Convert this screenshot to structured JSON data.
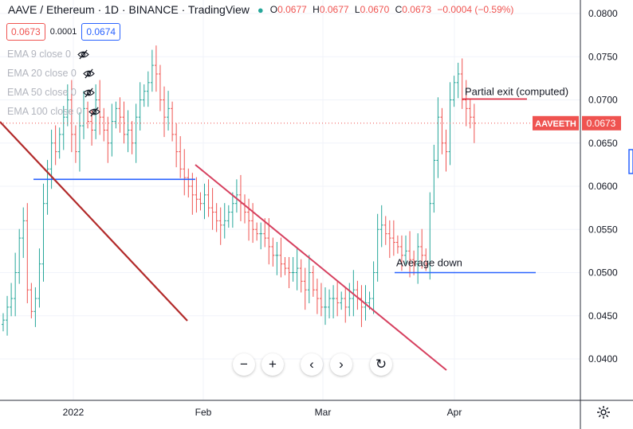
{
  "header": {
    "title": "AAVE / Ethereum · 1D · BINANCE · TradingView",
    "status_dot": "●",
    "ohlc": [
      {
        "key": "O",
        "value": "0.0677"
      },
      {
        "key": "H",
        "value": "0.0677"
      },
      {
        "key": "L",
        "value": "0.0670"
      },
      {
        "key": "C",
        "value": "0.0673"
      }
    ],
    "change": "−0.0004 (−0.59%)"
  },
  "trade": {
    "sell_price": "0.0673",
    "spread": "0.0001",
    "buy_price": "0.0674"
  },
  "indicators": [
    {
      "label": "EMA 9 close 0",
      "icon": "eye-off-icon"
    },
    {
      "label": "EMA 20 close 0",
      "icon": "eye-off-icon"
    },
    {
      "label": "EMA 50 close 0",
      "icon": "eye-off-icon"
    },
    {
      "label": "EMA 100 close 0",
      "icon": "eye-off-icon"
    }
  ],
  "annotations": {
    "partial_exit": "Partial exit (computed)",
    "average_down": "Average down"
  },
  "price_scale": {
    "ticks": [
      "0.0800",
      "0.0750",
      "0.0700",
      "0.0650",
      "0.0600",
      "0.0550",
      "0.0500",
      "0.0450",
      "0.0400"
    ],
    "symbol_label": "AAVEETH",
    "last_price": "0.0673"
  },
  "time_scale": {
    "ticks": [
      "2022",
      "Feb",
      "Mar",
      "Apr"
    ]
  },
  "controls": {
    "zoom_out": "−",
    "zoom_in": "+",
    "scroll_left": "‹",
    "scroll_right": "›",
    "reset": "↻"
  },
  "colors": {
    "up": "#26a69a",
    "down": "#ef5350",
    "hline": "#2962ff",
    "trend_dark": "#b22a2a",
    "trend_pink": "#d6405f",
    "exit_line": "#e0283c"
  },
  "chart_data": {
    "type": "candlestick",
    "symbol": "AAVEETH",
    "timeframe": "1D",
    "exchange": "BINANCE",
    "ylim": [
      0.038,
      0.081
    ],
    "last_close": 0.0673,
    "closes_approx": [
      0.0445,
      0.046,
      0.047,
      0.05,
      0.054,
      0.056,
      0.048,
      0.0455,
      0.047,
      0.051,
      0.058,
      0.062,
      0.065,
      0.064,
      0.066,
      0.068,
      0.07,
      0.066,
      0.064,
      0.067,
      0.069,
      0.0675,
      0.0665,
      0.07,
      0.068,
      0.0665,
      0.065,
      0.0675,
      0.069,
      0.068,
      0.066,
      0.0665,
      0.065,
      0.068,
      0.07,
      0.071,
      0.072,
      0.074,
      0.073,
      0.07,
      0.068,
      0.069,
      0.066,
      0.064,
      0.062,
      0.061,
      0.06,
      0.059,
      0.0585,
      0.058,
      0.059,
      0.0575,
      0.057,
      0.056,
      0.0555,
      0.056,
      0.057,
      0.058,
      0.059,
      0.058,
      0.057,
      0.056,
      0.055,
      0.0545,
      0.0545,
      0.054,
      0.053,
      0.052,
      0.052,
      0.051,
      0.0505,
      0.05,
      0.05,
      0.0505,
      0.049,
      0.048,
      0.05,
      0.048,
      0.047,
      0.046,
      0.046,
      0.047,
      0.047,
      0.0465,
      0.047,
      0.046,
      0.047,
      0.048,
      0.047,
      0.046,
      0.0465,
      0.047,
      0.05,
      0.055,
      0.0555,
      0.0545,
      0.054,
      0.0535,
      0.053,
      0.052,
      0.0525,
      0.0515,
      0.051,
      0.053,
      0.052,
      0.051,
      0.058,
      0.063,
      0.068,
      0.065,
      0.064,
      0.07,
      0.072,
      0.073,
      0.07,
      0.069,
      0.068,
      0.0673
    ],
    "horizontal_lines": [
      {
        "price": 0.0608,
        "label": ""
      },
      {
        "price": 0.05,
        "label": "Average down"
      },
      {
        "price": 0.0701,
        "label": "Partial exit (computed)"
      }
    ],
    "x_ticks": [
      "2022",
      "Feb",
      "Mar",
      "Apr"
    ],
    "y_ticks": [
      0.08,
      0.075,
      0.07,
      0.065,
      0.06,
      0.055,
      0.05,
      0.045,
      0.04
    ]
  }
}
